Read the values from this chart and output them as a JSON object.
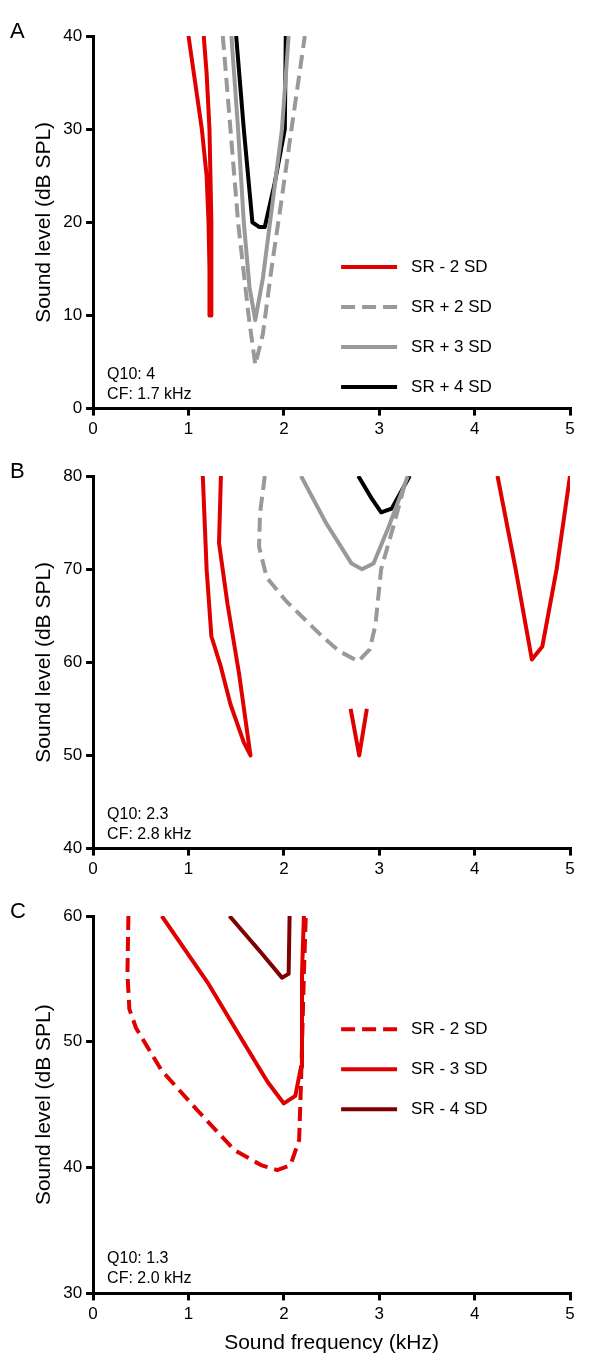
{
  "chart_data": [
    {
      "type": "line",
      "title": "A",
      "ylabel": "Sound level (dB SPL)",
      "xlim": [
        0,
        5
      ],
      "xticks": [
        0,
        1,
        2,
        3,
        4,
        5
      ],
      "ylim": [
        0,
        40
      ],
      "yticks": [
        0,
        10,
        20,
        30,
        40
      ],
      "marker": "none",
      "legend": "bottom right",
      "annotations": [
        "Q10: 4",
        "CF: 1.7 kHz"
      ],
      "series": [
        {
          "name": "SR - 2 SD",
          "color": "#e00000",
          "line_style": "solid",
          "x": [
            1.0,
            1.07,
            1.14,
            1.19,
            1.21,
            1.22,
            1.22,
            1.24,
            1.24,
            1.22,
            1.19,
            1.16
          ],
          "values": [
            40,
            35,
            30,
            25,
            20,
            15,
            10,
            10,
            20,
            30,
            36,
            40
          ]
        },
        {
          "name": "SR + 2 SD",
          "color": "#999999",
          "line_style": "dashed",
          "x": [
            1.36,
            1.44,
            1.52,
            1.63,
            1.7,
            1.78,
            1.87,
            1.97,
            2.08,
            2.22
          ],
          "values": [
            40,
            30,
            20,
            10,
            4.7,
            8,
            15,
            22,
            30,
            40
          ]
        },
        {
          "name": "SR + 3 SD",
          "color": "#999999",
          "line_style": "solid",
          "x": [
            1.45,
            1.52,
            1.58,
            1.64,
            1.7,
            1.78,
            1.88,
            1.98,
            2.05
          ],
          "values": [
            40,
            30,
            20,
            13,
            9.5,
            14,
            22,
            30,
            40
          ]
        },
        {
          "name": "SR + 4 SD",
          "color": "#000000",
          "line_style": "solid",
          "x": [
            1.5,
            1.58,
            1.67,
            1.74,
            1.8,
            1.9,
            2.01,
            2.02
          ],
          "values": [
            40,
            30,
            20,
            19.5,
            19.5,
            24,
            30,
            40
          ]
        }
      ]
    },
    {
      "type": "line",
      "title": "B",
      "ylabel": "Sound level (dB SPL)",
      "xlim": [
        0,
        5
      ],
      "xticks": [
        0,
        1,
        2,
        3,
        4,
        5
      ],
      "ylim": [
        40,
        80
      ],
      "yticks": [
        40,
        50,
        60,
        70,
        80
      ],
      "marker": "none",
      "annotations": [
        "Q10: 2.3",
        "CF: 2.8 kHz"
      ],
      "series": [
        {
          "color": "#e00000",
          "line_style": "solid",
          "x": [
            1.15,
            1.19,
            1.24,
            1.34,
            1.44,
            1.58,
            1.65,
            1.53,
            1.41,
            1.32,
            1.34
          ],
          "values": [
            80,
            70,
            62.8,
            59.5,
            55.5,
            51.4,
            50,
            58.8,
            66.2,
            72.8,
            80
          ]
        },
        {
          "color": "#e00000",
          "line_style": "solid",
          "x": [
            2.7,
            2.79,
            2.87
          ],
          "values": [
            55,
            50,
            55
          ]
        },
        {
          "color": "#e00000",
          "line_style": "solid",
          "x": [
            4.24,
            4.43,
            4.6,
            4.71,
            4.86,
            5.0
          ],
          "values": [
            80,
            70,
            60.3,
            61.7,
            70,
            80
          ]
        },
        {
          "color": "#999999",
          "line_style": "dashed",
          "x": [
            1.8,
            1.75,
            1.74,
            1.82,
            2.03,
            2.41,
            2.58,
            2.78,
            2.9,
            2.96,
            3.02,
            3.16,
            3.28
          ],
          "values": [
            80,
            76,
            72.4,
            69.1,
            66.5,
            62.7,
            61.2,
            60.1,
            61.4,
            64,
            70,
            75,
            79.6
          ]
        },
        {
          "color": "#999999",
          "line_style": "solid",
          "x": [
            2.18,
            2.44,
            2.71,
            2.82,
            2.94,
            3.09,
            3.3
          ],
          "values": [
            80,
            75,
            70.6,
            70,
            70.6,
            74.3,
            80
          ]
        },
        {
          "color": "#000000",
          "line_style": "solid",
          "x": [
            2.78,
            2.92,
            3.02,
            3.13,
            3.32
          ],
          "values": [
            80,
            77.6,
            76.1,
            76.5,
            80
          ]
        }
      ]
    },
    {
      "type": "line",
      "title": "C",
      "xlabel": "Sound frequency (kHz)",
      "ylabel": "Sound level (dB SPL)",
      "xlim": [
        0,
        5
      ],
      "xticks": [
        0,
        1,
        2,
        3,
        4,
        5
      ],
      "ylim": [
        30,
        60
      ],
      "yticks": [
        30,
        40,
        50,
        60
      ],
      "marker": "none",
      "legend": "right",
      "annotations": [
        "Q10: 1.3",
        "CF: 2.0 kHz"
      ],
      "series": [
        {
          "name": "SR - 2 SD",
          "color": "#e00000",
          "line_style": "dashed",
          "x": [
            0.37,
            0.36,
            0.38,
            0.45,
            0.72,
            1.1,
            1.48,
            1.76,
            1.93,
            2.07,
            2.16,
            2.18,
            2.21,
            2.23
          ],
          "values": [
            60,
            55.4,
            52.6,
            51.1,
            47.7,
            44.5,
            41.4,
            40.2,
            39.8,
            40.2,
            42.2,
            46.8,
            55.4,
            60
          ]
        },
        {
          "name": "SR - 3 SD",
          "color": "#e00000",
          "line_style": "solid",
          "x": [
            0.72,
            1.21,
            1.55,
            1.83,
            2.0,
            2.12,
            2.18,
            2.19,
            2.21
          ],
          "values": [
            60,
            54.6,
            50.3,
            46.8,
            45.1,
            45.7,
            48,
            55.4,
            60
          ]
        },
        {
          "name": "SR - 4 SD",
          "color": "#7f0000",
          "line_style": "solid",
          "x": [
            1.43,
            1.76,
            1.98,
            2.05,
            2.06
          ],
          "values": [
            60,
            57.1,
            55.1,
            55.4,
            60
          ]
        }
      ]
    }
  ]
}
